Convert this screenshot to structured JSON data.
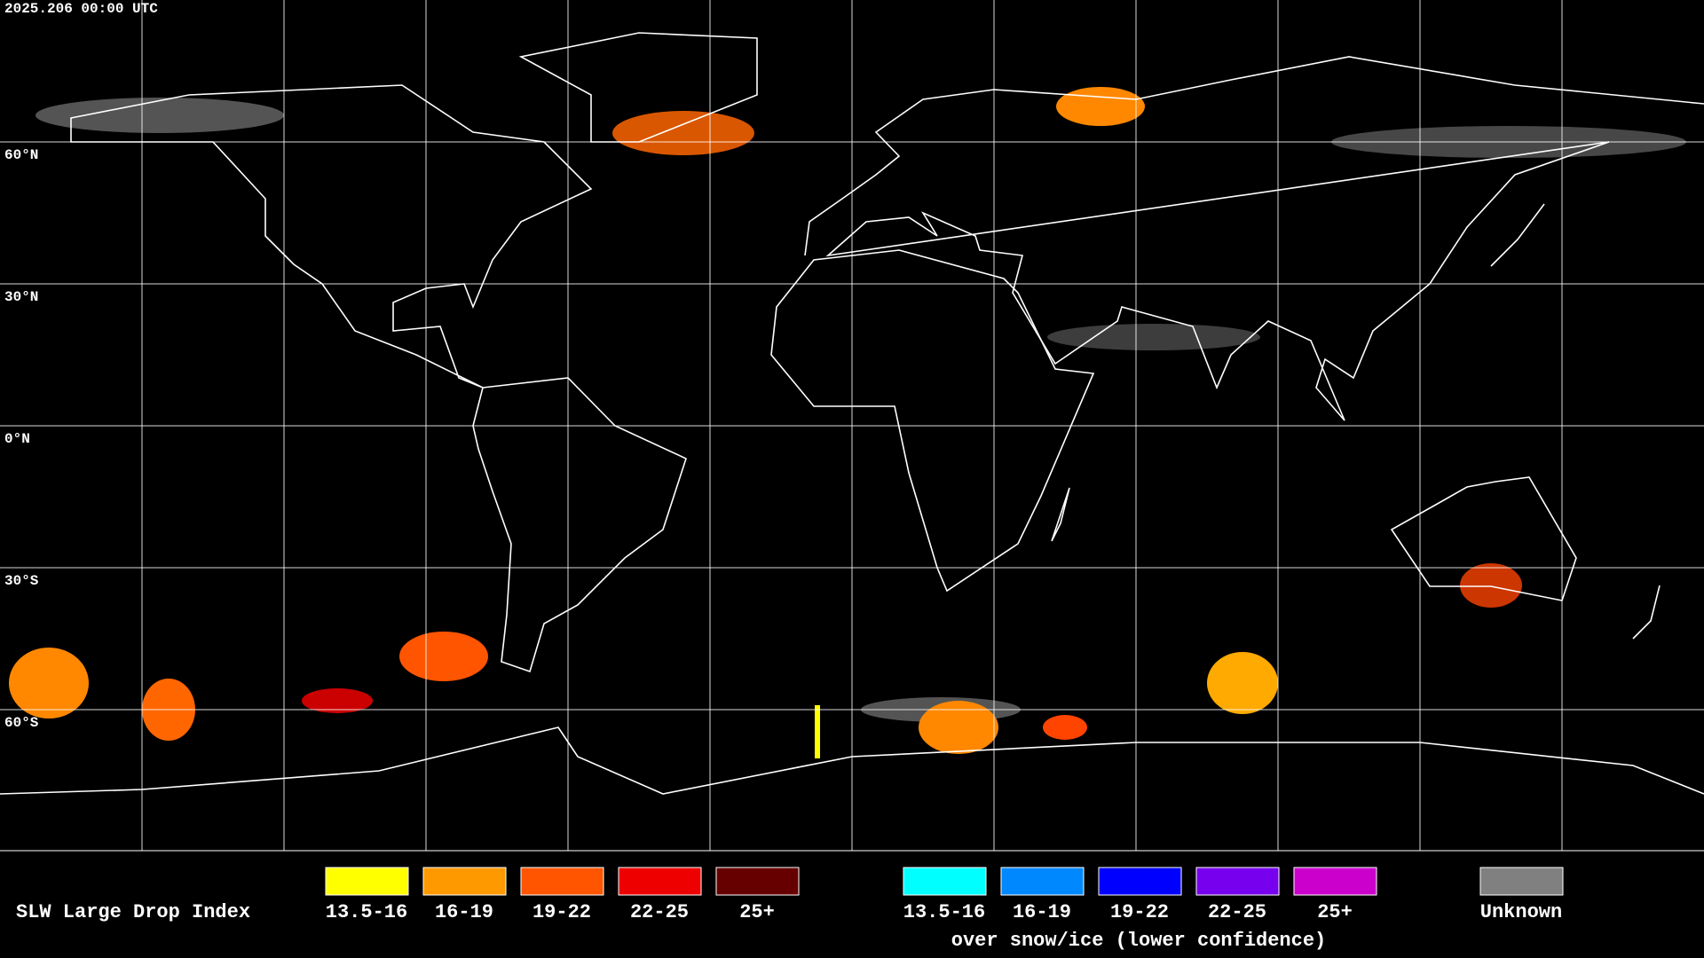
{
  "header": {
    "timestamp": "2025.206 00:00 UTC"
  },
  "map": {
    "lat_labels": [
      "60°N",
      "30°N",
      "0°N",
      "30°S",
      "60°S"
    ]
  },
  "legend": {
    "title": "SLW Large Drop Index",
    "items": [
      {
        "label": "13.5-16",
        "color": "#ffff00"
      },
      {
        "label": "16-19",
        "color": "#ff9900"
      },
      {
        "label": "19-22",
        "color": "#ff5500"
      },
      {
        "label": "22-25",
        "color": "#ee0000"
      },
      {
        "label": "25+",
        "color": "#660000"
      }
    ],
    "snow_items": [
      {
        "label": "13.5-16",
        "color": "#00ffff"
      },
      {
        "label": "16-19",
        "color": "#0088ff"
      },
      {
        "label": "19-22",
        "color": "#0000ff"
      },
      {
        "label": "22-25",
        "color": "#7700ee"
      },
      {
        "label": "25+",
        "color": "#cc00cc"
      }
    ],
    "note": "over snow/ice (lower confidence)",
    "unknown": {
      "label": "Unknown",
      "color": "#808080"
    }
  }
}
